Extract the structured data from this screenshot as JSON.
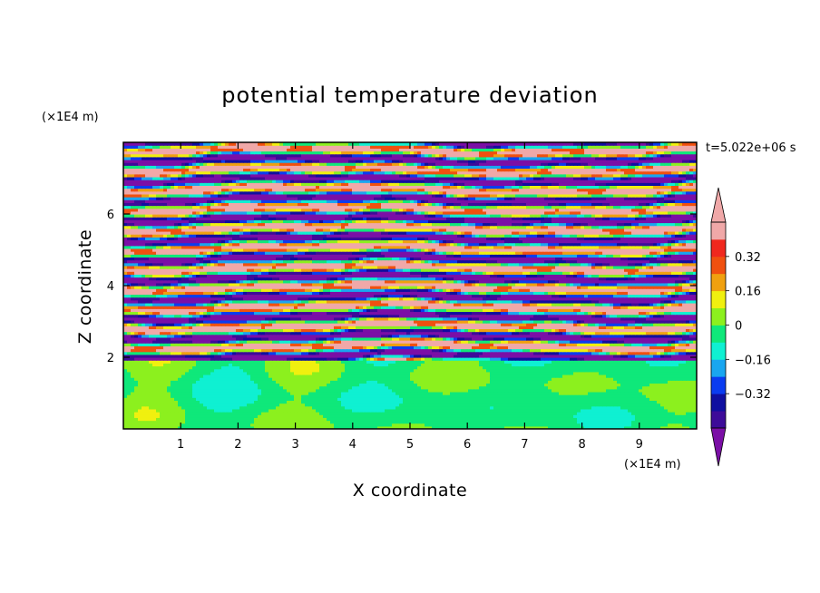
{
  "chart_data": {
    "type": "heatmap",
    "title": "potential temperature deviation",
    "xlabel": "X coordinate",
    "ylabel": "Z coordinate",
    "x_unit": "(×1E4 m)",
    "y_unit": "(×1E4 m)",
    "time_label": "t=5.022e+06 s",
    "xlim": [
      0,
      10
    ],
    "ylim": [
      0,
      8
    ],
    "x_ticks": [
      "1",
      "2",
      "3",
      "4",
      "5",
      "6",
      "7",
      "8",
      "9"
    ],
    "y_ticks": [
      "2",
      "4",
      "6"
    ],
    "colorbar": {
      "levels": [
        -0.4,
        -0.32,
        -0.24,
        -0.16,
        -0.08,
        0,
        0.08,
        0.16,
        0.24,
        0.32,
        0.4
      ],
      "labels": [
        "-0.32",
        "-0.16",
        "0",
        "0.16",
        "0.32"
      ],
      "colors": [
        "#7B0FA6",
        "#3D0B99",
        "#0F0FA0",
        "#0A3CF0",
        "#19A6F0",
        "#0FF0D2",
        "#0FE87A",
        "#8CF01E",
        "#F0F00F",
        "#F0A00F",
        "#F0500F",
        "#F0281E",
        "#F0A8A8"
      ],
      "extend": "both"
    },
    "field_description_rows": {
      "upper_stratified_layers_z": [
        1.9,
        8.0
      ],
      "lower_mixed_layer_z": [
        0,
        1.9
      ]
    }
  }
}
